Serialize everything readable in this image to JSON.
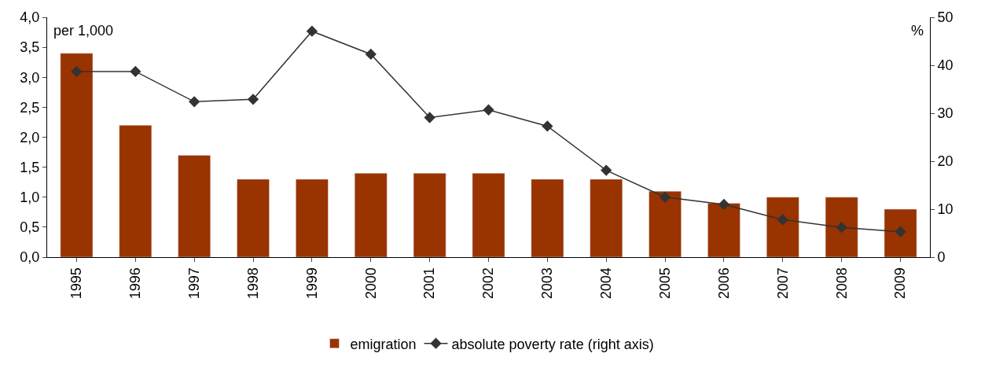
{
  "chart_data": {
    "type": "bar",
    "categories": [
      "1995",
      "1996",
      "1997",
      "1998",
      "1999",
      "2000",
      "2001",
      "2002",
      "2003",
      "2004",
      "2005",
      "2006",
      "2007",
      "2008",
      "2009"
    ],
    "series": [
      {
        "name": "emigration",
        "color": "#993300",
        "values": [
          3.4,
          2.2,
          1.7,
          1.3,
          1.3,
          1.4,
          1.4,
          1.4,
          1.3,
          1.3,
          1.1,
          0.9,
          1.0,
          1.0,
          0.8
        ]
      },
      {
        "name": "absolute poverty rate (right axis)",
        "type": "line",
        "axis": "y2",
        "color": "#333333",
        "marker": "diamond",
        "values": [
          38.7,
          38.7,
          32.4,
          32.9,
          47.1,
          42.3,
          29.1,
          30.7,
          27.3,
          18.1,
          12.5,
          11.0,
          7.8,
          6.2,
          5.3
        ]
      }
    ],
    "ylim": [
      0,
      4
    ],
    "yticks": [
      {
        "value": 0,
        "label": "0,0"
      },
      {
        "value": 0.5,
        "label": "0,5"
      },
      {
        "value": 1,
        "label": "1,0"
      },
      {
        "value": 1.5,
        "label": "1,5"
      },
      {
        "value": 2,
        "label": "2,0"
      },
      {
        "value": 2.5,
        "label": "2,5"
      },
      {
        "value": 3,
        "label": "3,0"
      },
      {
        "value": 3.5,
        "label": "3,5"
      },
      {
        "value": 4,
        "label": "4,0"
      }
    ],
    "y2lim": [
      0,
      50
    ],
    "y2ticks": [
      0,
      10,
      20,
      30,
      40,
      50
    ],
    "annotations": [
      "per 1,000",
      "%"
    ],
    "legend": "bottom"
  }
}
